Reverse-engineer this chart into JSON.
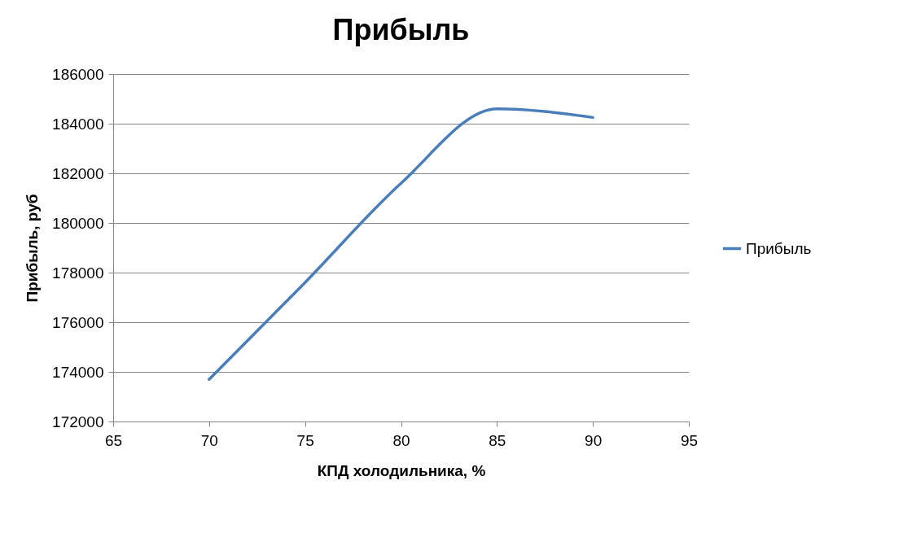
{
  "chart_data": {
    "type": "line",
    "title": "Прибыль",
    "xlabel": "КПД холодильника, %",
    "ylabel": "Прибыль, руб",
    "x": [
      70,
      75,
      80,
      85,
      90
    ],
    "series": [
      {
        "name": "Прибыль",
        "color": "#4a7ebb",
        "values": [
          173700,
          177600,
          181600,
          184600,
          184250
        ]
      }
    ],
    "xlim": [
      65,
      95
    ],
    "xticks": [
      65,
      70,
      75,
      80,
      85,
      90,
      95
    ],
    "ylim": [
      172000,
      186000
    ],
    "yticks": [
      172000,
      174000,
      176000,
      178000,
      180000,
      182000,
      184000,
      186000
    ],
    "grid": "y",
    "legend": "right",
    "marker": "none",
    "line_style": "solid"
  }
}
